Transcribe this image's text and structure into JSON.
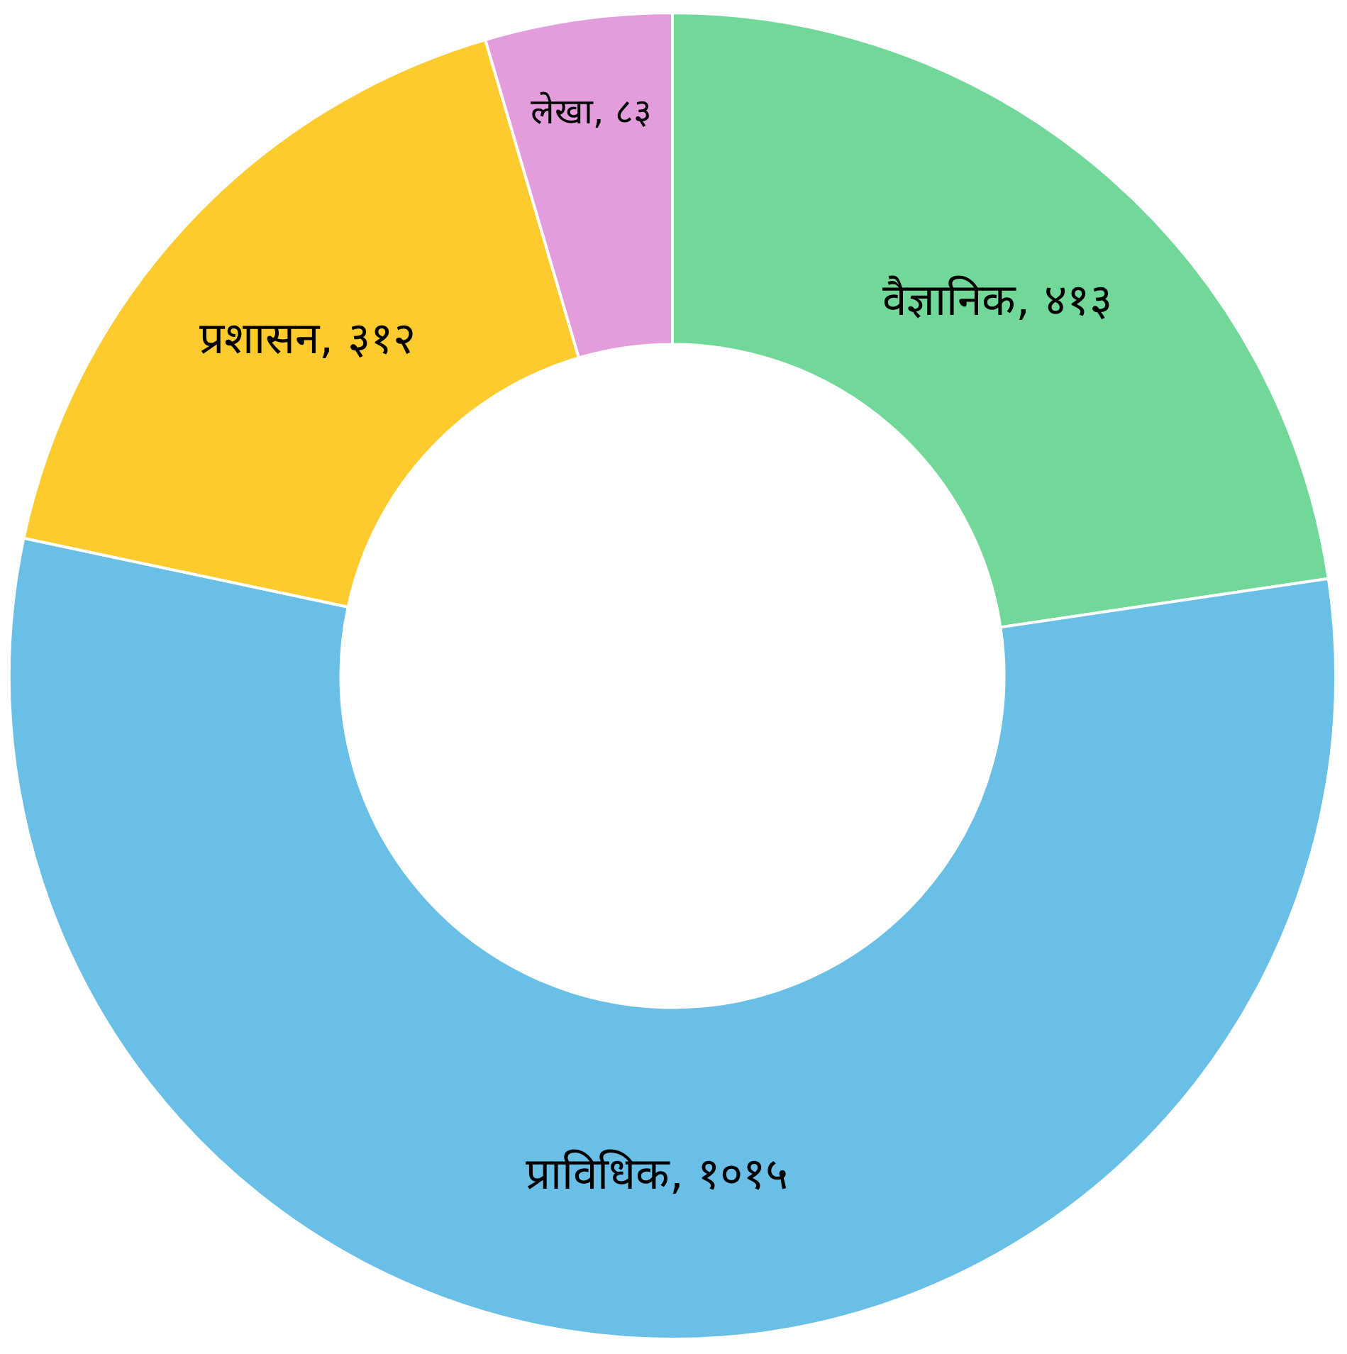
{
  "chart_data": {
    "type": "donut",
    "categories": [
      "वैज्ञानिक",
      "प्राविधिक",
      "प्रशासन",
      "लेखा"
    ],
    "values": [
      413,
      1015,
      312,
      83
    ],
    "value_labels": [
      "४१३",
      "१०१५",
      "३१२",
      "८३"
    ],
    "colors": [
      "#72d89a",
      "#69bfe5",
      "#fdcb2d",
      "#e39ddc"
    ]
  }
}
